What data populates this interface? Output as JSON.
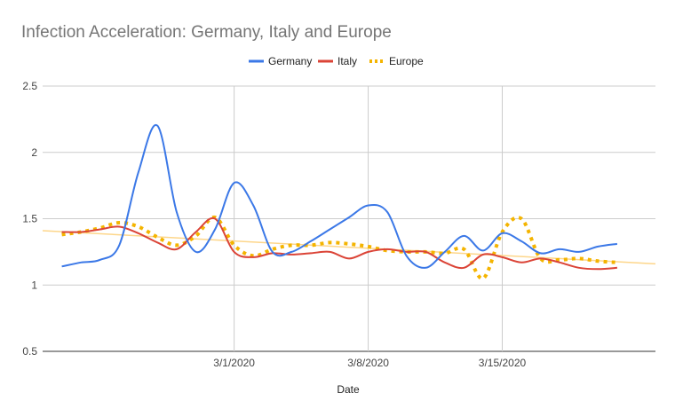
{
  "chart_data": {
    "type": "line",
    "title": "Infection Acceleration: Germany, Italy and Europe",
    "xlabel": "Date",
    "ylabel": "",
    "ylim": [
      0.5,
      2.5
    ],
    "xlim": [
      "2020-02-20",
      "2020-03-23"
    ],
    "y_ticks": [
      "0.5",
      "1",
      "1.5",
      "2",
      "2.5"
    ],
    "x_ticks": [
      {
        "date": "2020-03-01",
        "label": "3/1/2020"
      },
      {
        "date": "2020-03-08",
        "label": "3/8/2020"
      },
      {
        "date": "2020-03-15",
        "label": "3/15/2020"
      }
    ],
    "grid": true,
    "legend_position": "top",
    "series": [
      {
        "name": "Germany",
        "color": "#3b78e7",
        "style": "solid",
        "points": [
          [
            "2020-02-21",
            1.14
          ],
          [
            "2020-02-22",
            1.17
          ],
          [
            "2020-02-23",
            1.19
          ],
          [
            "2020-02-24",
            1.3
          ],
          [
            "2020-02-25",
            1.85
          ],
          [
            "2020-02-26",
            2.2
          ],
          [
            "2020-02-27",
            1.55
          ],
          [
            "2020-02-28",
            1.25
          ],
          [
            "2020-02-29",
            1.42
          ],
          [
            "2020-03-01",
            1.77
          ],
          [
            "2020-03-02",
            1.6
          ],
          [
            "2020-03-03",
            1.25
          ],
          [
            "2020-03-04",
            1.25
          ],
          [
            "2020-03-05",
            1.33
          ],
          [
            "2020-03-06",
            1.42
          ],
          [
            "2020-03-07",
            1.51
          ],
          [
            "2020-03-08",
            1.6
          ],
          [
            "2020-03-09",
            1.55
          ],
          [
            "2020-03-10",
            1.22
          ],
          [
            "2020-03-11",
            1.13
          ],
          [
            "2020-03-12",
            1.25
          ],
          [
            "2020-03-13",
            1.37
          ],
          [
            "2020-03-14",
            1.26
          ],
          [
            "2020-03-15",
            1.39
          ],
          [
            "2020-03-16",
            1.33
          ],
          [
            "2020-03-17",
            1.24
          ],
          [
            "2020-03-18",
            1.27
          ],
          [
            "2020-03-19",
            1.25
          ],
          [
            "2020-03-20",
            1.29
          ],
          [
            "2020-03-21",
            1.31
          ]
        ]
      },
      {
        "name": "Italy",
        "color": "#db4437",
        "style": "solid",
        "points": [
          [
            "2020-02-21",
            1.4
          ],
          [
            "2020-02-22",
            1.4
          ],
          [
            "2020-02-23",
            1.42
          ],
          [
            "2020-02-24",
            1.44
          ],
          [
            "2020-02-25",
            1.39
          ],
          [
            "2020-02-26",
            1.32
          ],
          [
            "2020-02-27",
            1.27
          ],
          [
            "2020-02-28",
            1.4
          ],
          [
            "2020-02-29",
            1.5
          ],
          [
            "2020-03-01",
            1.25
          ],
          [
            "2020-03-02",
            1.21
          ],
          [
            "2020-03-03",
            1.24
          ],
          [
            "2020-03-04",
            1.23
          ],
          [
            "2020-03-05",
            1.24
          ],
          [
            "2020-03-06",
            1.25
          ],
          [
            "2020-03-07",
            1.2
          ],
          [
            "2020-03-08",
            1.25
          ],
          [
            "2020-03-09",
            1.27
          ],
          [
            "2020-03-10",
            1.25
          ],
          [
            "2020-03-11",
            1.25
          ],
          [
            "2020-03-12",
            1.17
          ],
          [
            "2020-03-13",
            1.13
          ],
          [
            "2020-03-14",
            1.23
          ],
          [
            "2020-03-15",
            1.21
          ],
          [
            "2020-03-16",
            1.17
          ],
          [
            "2020-03-17",
            1.2
          ],
          [
            "2020-03-18",
            1.17
          ],
          [
            "2020-03-19",
            1.13
          ],
          [
            "2020-03-20",
            1.12
          ],
          [
            "2020-03-21",
            1.13
          ]
        ]
      },
      {
        "name": "Europe",
        "color": "#f4b400",
        "style": "dotted",
        "points": [
          [
            "2020-02-21",
            1.38
          ],
          [
            "2020-02-22",
            1.4
          ],
          [
            "2020-02-23",
            1.43
          ],
          [
            "2020-02-24",
            1.47
          ],
          [
            "2020-02-25",
            1.44
          ],
          [
            "2020-02-26",
            1.36
          ],
          [
            "2020-02-27",
            1.3
          ],
          [
            "2020-02-28",
            1.37
          ],
          [
            "2020-02-29",
            1.51
          ],
          [
            "2020-03-01",
            1.3
          ],
          [
            "2020-03-02",
            1.22
          ],
          [
            "2020-03-03",
            1.27
          ],
          [
            "2020-03-04",
            1.3
          ],
          [
            "2020-03-05",
            1.3
          ],
          [
            "2020-03-06",
            1.32
          ],
          [
            "2020-03-07",
            1.31
          ],
          [
            "2020-03-08",
            1.29
          ],
          [
            "2020-03-09",
            1.26
          ],
          [
            "2020-03-10",
            1.25
          ],
          [
            "2020-03-11",
            1.25
          ],
          [
            "2020-03-12",
            1.24
          ],
          [
            "2020-03-13",
            1.27
          ],
          [
            "2020-03-14",
            1.05
          ],
          [
            "2020-03-15",
            1.4
          ],
          [
            "2020-03-16",
            1.5
          ],
          [
            "2020-03-17",
            1.2
          ],
          [
            "2020-03-18",
            1.19
          ],
          [
            "2020-03-19",
            1.2
          ],
          [
            "2020-03-20",
            1.18
          ],
          [
            "2020-03-21",
            1.17
          ]
        ]
      }
    ],
    "trendline": {
      "color": "#fdd68a",
      "points": [
        [
          "2020-02-20",
          1.41
        ],
        [
          "2020-03-23",
          1.16
        ]
      ]
    }
  }
}
